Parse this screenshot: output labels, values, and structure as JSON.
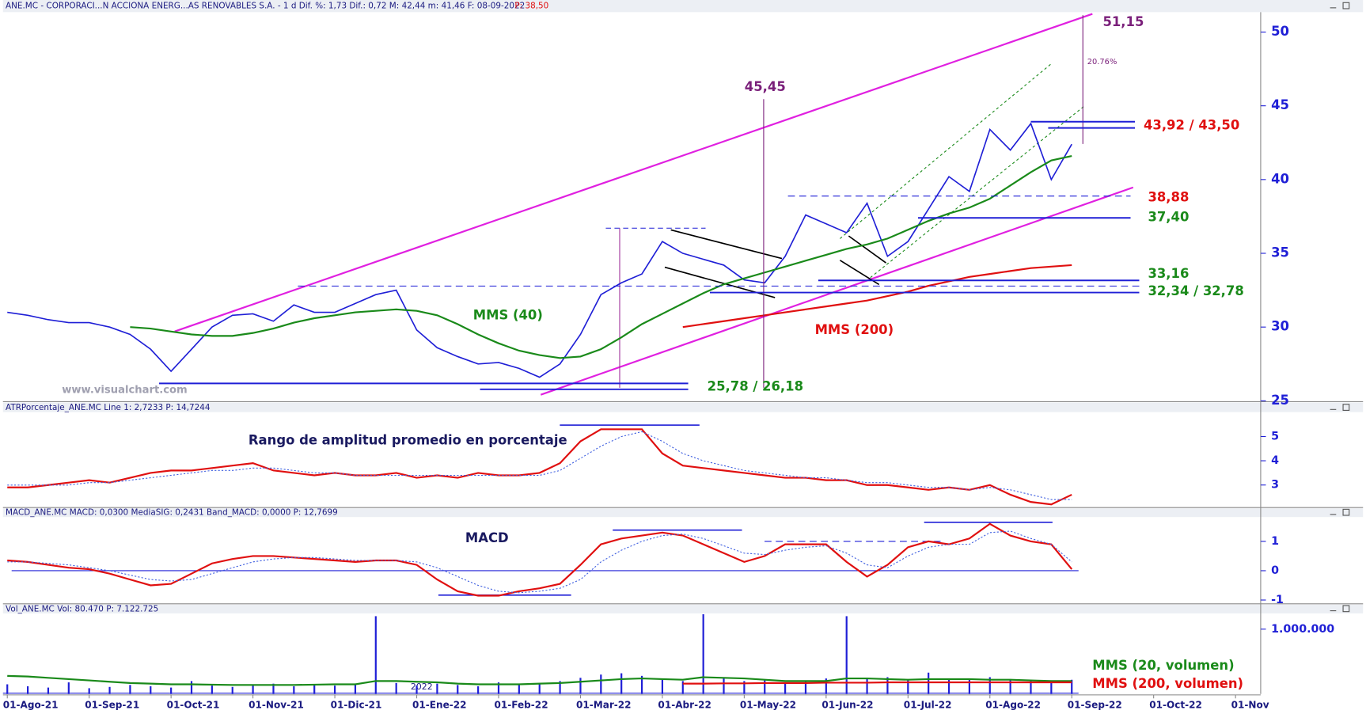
{
  "chart_data": [
    {
      "type": "line",
      "title": "ANE.MC - CORPORACI...N ACCIONA ENERG...AS RENOVABLES S.A. -  1 d  Dif. %: 1,73  Dif.: 0,72  M: 42,44  m: 41,46  F: 08-09-2022",
      "price_label": "P: 38,50",
      "watermark": "www.visualchart.com",
      "categories": [
        "01-Ago-21",
        null,
        null,
        null,
        "01-Sep-21",
        null,
        null,
        null,
        "01-Oct-21",
        null,
        null,
        null,
        "01-Nov-21",
        null,
        null,
        null,
        "01-Dic-21",
        null,
        null,
        null,
        "01-Ene-22",
        null,
        null,
        null,
        "01-Feb-22",
        null,
        null,
        null,
        "01-Mar-22",
        null,
        null,
        null,
        "01-Abr-22",
        null,
        null,
        null,
        "01-May-22",
        null,
        null,
        null,
        "01-Jun-22",
        null,
        null,
        null,
        "01-Jul-22",
        null,
        null,
        null,
        "01-Ago-22",
        null,
        null,
        null,
        "01-Sep-22",
        null,
        null,
        null,
        "01-Oct-22",
        null,
        null,
        null,
        "01-Nov"
      ],
      "series": [
        {
          "color": "#1f1fd6",
          "values": [
            31.0,
            30.8,
            30.5,
            30.3,
            30.3,
            30.0,
            29.5,
            28.5,
            27.0,
            28.5,
            30.0,
            30.8,
            30.9,
            30.4,
            31.5,
            31.0,
            31.0,
            31.6,
            32.2,
            32.5,
            29.8,
            28.6,
            28.0,
            27.5,
            27.6,
            27.2,
            26.6,
            27.5,
            29.5,
            32.2,
            33.0,
            33.6,
            35.8,
            35.0,
            34.6,
            34.2,
            33.2,
            33.0,
            34.8,
            37.6,
            37.0,
            36.4,
            38.4,
            34.8,
            35.8,
            38.0,
            40.2,
            39.2,
            43.4,
            42.0,
            43.8,
            40.0,
            42.4,
            null,
            null,
            null,
            null,
            null,
            null,
            null,
            null
          ]
        },
        {
          "name": "MMS (40)",
          "color": "#1a8a1a",
          "values": [
            null,
            null,
            null,
            null,
            null,
            null,
            30.0,
            29.9,
            29.7,
            29.5,
            29.4,
            29.4,
            29.6,
            29.9,
            30.3,
            30.6,
            30.8,
            31.0,
            31.1,
            31.2,
            31.1,
            30.8,
            30.2,
            29.5,
            28.9,
            28.4,
            28.1,
            27.9,
            28.0,
            28.5,
            29.3,
            30.2,
            30.9,
            31.6,
            32.3,
            32.9,
            33.3,
            33.7,
            34.1,
            34.5,
            34.9,
            35.3,
            35.6,
            36.0,
            36.6,
            37.2,
            37.7,
            38.1,
            38.7,
            39.6,
            40.5,
            41.3,
            41.6,
            null,
            null,
            null,
            null,
            null,
            null,
            null,
            null
          ]
        },
        {
          "name": "MMS (200)",
          "color": "#e01010",
          "values": [
            null,
            null,
            null,
            null,
            null,
            null,
            null,
            null,
            null,
            null,
            null,
            null,
            null,
            null,
            null,
            null,
            null,
            null,
            null,
            null,
            null,
            null,
            null,
            null,
            null,
            null,
            null,
            null,
            null,
            null,
            null,
            null,
            null,
            30.0,
            30.2,
            30.4,
            30.6,
            30.8,
            31.0,
            31.2,
            31.4,
            31.6,
            31.8,
            32.1,
            32.4,
            32.8,
            33.1,
            33.4,
            33.6,
            33.8,
            34.0,
            34.1,
            34.2,
            null,
            null,
            null,
            null,
            null,
            null,
            null,
            null
          ]
        }
      ],
      "ylim": [
        25,
        51.35
      ],
      "yticks": [
        25,
        30,
        35,
        40,
        45,
        50
      ],
      "annotations": [
        {
          "label": "51,15",
          "levels": [
            51.15
          ],
          "color": "#7a1f7a",
          "note": "20.76%"
        },
        {
          "label": "45,45",
          "levels": [
            45.45
          ],
          "color": "#7a1f7a"
        },
        {
          "label": "43,92 / 43,50",
          "levels": [
            43.92,
            43.5
          ],
          "color": "#e01010"
        },
        {
          "label": "38,88",
          "levels": [
            38.88
          ],
          "color": "#e01010"
        },
        {
          "label": "37,40",
          "levels": [
            37.4
          ],
          "color": "#1a8a1a"
        },
        {
          "label": "33,16",
          "levels": [
            33.16
          ],
          "color": "#1a8a1a"
        },
        {
          "label": "32,34 / 32,78",
          "levels": [
            32.34,
            32.78
          ],
          "color": "#1a8a1a"
        },
        {
          "label": "25,78 / 26,18",
          "levels": [
            25.78,
            26.18
          ],
          "color": "#1a8a1a"
        }
      ]
    },
    {
      "type": "line",
      "title": "ATRPorcentaje_ANE.MC  Line 1: 2,7233  P: 14,7244",
      "label": "Rango de amplitud promedio en porcentaje",
      "series": [
        {
          "color": "#e01010",
          "values": [
            2.9,
            2.9,
            3.0,
            3.1,
            3.2,
            3.1,
            3.3,
            3.5,
            3.6,
            3.6,
            3.7,
            3.8,
            3.9,
            3.6,
            3.5,
            3.4,
            3.5,
            3.4,
            3.4,
            3.5,
            3.3,
            3.4,
            3.3,
            3.5,
            3.4,
            3.4,
            3.5,
            3.9,
            4.8,
            5.3,
            5.3,
            5.3,
            4.3,
            3.8,
            3.7,
            3.6,
            3.5,
            3.4,
            3.3,
            3.3,
            3.2,
            3.2,
            3.0,
            3.0,
            2.9,
            2.8,
            2.9,
            2.8,
            3.0,
            2.6,
            2.3,
            2.2,
            2.6,
            null,
            null,
            null,
            null,
            null,
            null,
            null,
            null
          ]
        },
        {
          "color": "#4060e0",
          "dashed": true,
          "values": [
            3.0,
            3.0,
            3.0,
            3.0,
            3.1,
            3.1,
            3.2,
            3.3,
            3.4,
            3.5,
            3.6,
            3.6,
            3.7,
            3.7,
            3.6,
            3.5,
            3.5,
            3.4,
            3.4,
            3.4,
            3.4,
            3.4,
            3.4,
            3.4,
            3.4,
            3.4,
            3.4,
            3.6,
            4.1,
            4.6,
            5.0,
            5.2,
            4.8,
            4.3,
            4.0,
            3.8,
            3.6,
            3.5,
            3.4,
            3.3,
            3.3,
            3.2,
            3.1,
            3.1,
            3.0,
            2.9,
            2.9,
            2.8,
            2.9,
            2.8,
            2.6,
            2.4,
            2.4,
            null,
            null,
            null,
            null,
            null,
            null,
            null,
            null
          ]
        }
      ],
      "ylim": [
        2,
        5.9
      ],
      "yticks": [
        3,
        4,
        5
      ]
    },
    {
      "type": "line",
      "title": "MACD_ANE.MC  MACD: 0,0300  MediaSIG: 0,2431  Band_MACD: 0,0000  P: 12,7699",
      "label": "MACD",
      "zero_line": true,
      "series": [
        {
          "color": "#e01010",
          "values": [
            0.35,
            0.3,
            0.2,
            0.1,
            0.05,
            -0.1,
            -0.3,
            -0.5,
            -0.45,
            -0.1,
            0.25,
            0.4,
            0.5,
            0.5,
            0.45,
            0.4,
            0.35,
            0.3,
            0.35,
            0.35,
            0.2,
            -0.3,
            -0.7,
            -0.85,
            -0.85,
            -0.7,
            -0.6,
            -0.45,
            0.2,
            0.9,
            1.1,
            1.2,
            1.3,
            1.2,
            0.9,
            0.6,
            0.3,
            0.5,
            0.9,
            0.9,
            0.9,
            0.3,
            -0.2,
            0.2,
            0.8,
            1.0,
            0.9,
            1.1,
            1.6,
            1.2,
            1.0,
            0.9,
            0.05,
            null,
            null,
            null,
            null,
            null,
            null,
            null,
            null
          ]
        },
        {
          "color": "#4060e0",
          "dashed": true,
          "values": [
            0.3,
            0.3,
            0.25,
            0.2,
            0.1,
            0,
            -0.15,
            -0.3,
            -0.35,
            -0.3,
            -0.1,
            0.1,
            0.3,
            0.4,
            0.45,
            0.45,
            0.4,
            0.35,
            0.35,
            0.35,
            0.3,
            0.1,
            -0.2,
            -0.5,
            -0.7,
            -0.75,
            -0.7,
            -0.6,
            -0.3,
            0.3,
            0.7,
            1.0,
            1.2,
            1.25,
            1.1,
            0.85,
            0.6,
            0.55,
            0.7,
            0.8,
            0.85,
            0.6,
            0.2,
            0.1,
            0.5,
            0.8,
            0.9,
            0.9,
            1.3,
            1.35,
            1.1,
            0.9,
            0.3,
            null,
            null,
            null,
            null,
            null,
            null,
            null,
            null
          ]
        }
      ],
      "ylim": [
        -1.1,
        1.8
      ],
      "yticks": [
        -1,
        0,
        1
      ]
    },
    {
      "type": "bar",
      "title": "Vol_ANE.MC  Vol: 80.470  P: 7.122.725",
      "note": "2022",
      "color": "#1f1fd6",
      "values": [
        150000,
        120000,
        100000,
        180000,
        90000,
        110000,
        140000,
        120000,
        100000,
        200000,
        130000,
        110000,
        150000,
        160000,
        120000,
        140000,
        130000,
        150000,
        1200000,
        170000,
        130000,
        160000,
        140000,
        120000,
        180000,
        150000,
        170000,
        200000,
        250000,
        300000,
        320000,
        280000,
        230000,
        200000,
        1230000,
        250000,
        200000,
        210000,
        180000,
        190000,
        240000,
        1200000,
        230000,
        260000,
        210000,
        330000,
        240000,
        220000,
        260000,
        230000,
        210000,
        180000,
        220000,
        null,
        null,
        null,
        null,
        null,
        null,
        null,
        null
      ],
      "series": [
        {
          "name": "MMS (20, volumen)",
          "color": "#1a8a1a",
          "values": [
            280000,
            270000,
            250000,
            230000,
            210000,
            190000,
            170000,
            160000,
            150000,
            150000,
            145000,
            140000,
            140000,
            140000,
            140000,
            145000,
            150000,
            150000,
            200000,
            200000,
            190000,
            180000,
            160000,
            150000,
            150000,
            150000,
            160000,
            170000,
            190000,
            210000,
            230000,
            240000,
            230000,
            220000,
            260000,
            250000,
            240000,
            220000,
            200000,
            200000,
            200000,
            240000,
            240000,
            230000,
            220000,
            230000,
            230000,
            230000,
            220000,
            220000,
            210000,
            200000,
            200000,
            null,
            null,
            null,
            null,
            null,
            null,
            null,
            null
          ]
        },
        {
          "name": "MMS (200, volumen)",
          "color": "#e01010",
          "values": [
            null,
            null,
            null,
            null,
            null,
            null,
            null,
            null,
            null,
            null,
            null,
            null,
            null,
            null,
            null,
            null,
            null,
            null,
            null,
            null,
            null,
            null,
            null,
            null,
            null,
            null,
            null,
            null,
            null,
            null,
            null,
            null,
            null,
            160000,
            160000,
            165000,
            165000,
            170000,
            170000,
            170000,
            175000,
            175000,
            175000,
            180000,
            180000,
            180000,
            180000,
            180000,
            180000,
            180000,
            180000,
            180000,
            180000,
            null,
            null,
            null,
            null,
            null,
            null,
            null,
            null
          ]
        }
      ],
      "ylim": [
        0,
        1230000
      ],
      "yticks": [
        {
          "value": 1000000,
          "label": "1.000.000"
        }
      ]
    }
  ]
}
